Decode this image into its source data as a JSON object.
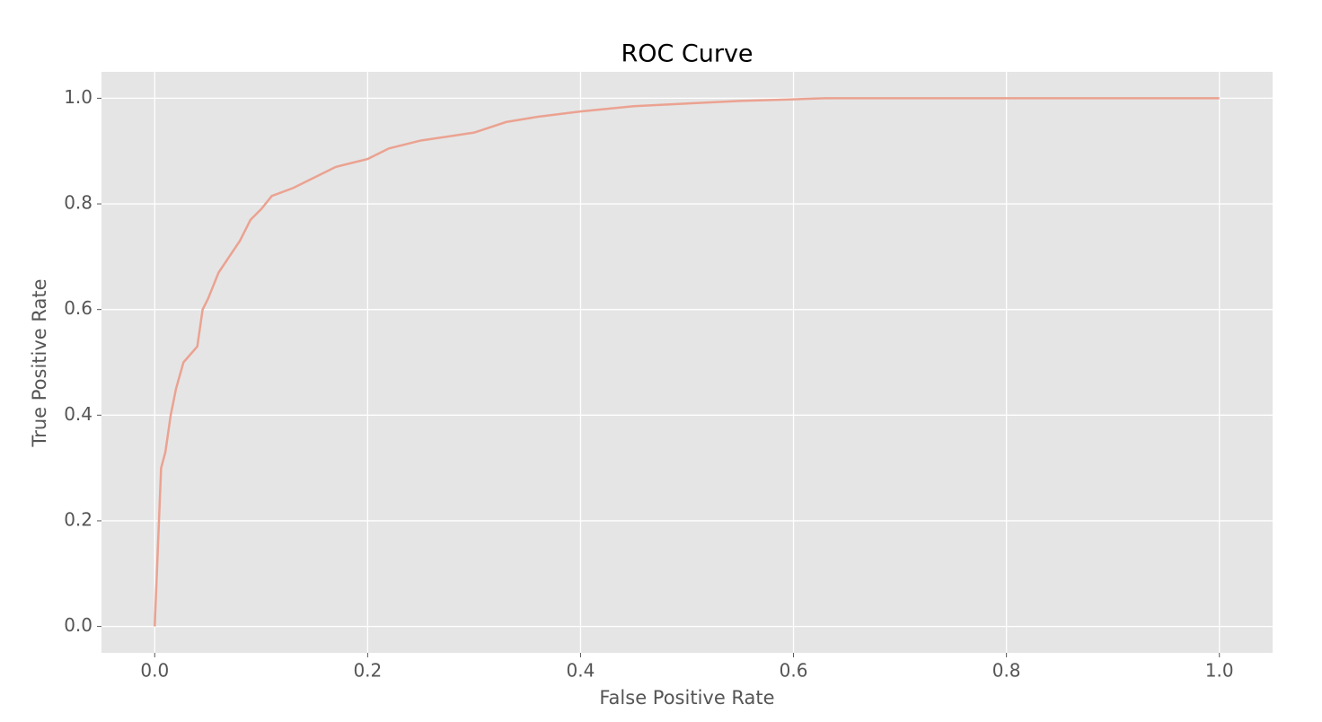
{
  "chart_data": {
    "type": "line",
    "title": "ROC Curve",
    "x_label": "False Positive Rate",
    "y_label": "True Positive Rate",
    "x": [
      0,
      0.002,
      0.004,
      0.006,
      0.01,
      0.015,
      0.02,
      0.027,
      0.04,
      0.045,
      0.05,
      0.06,
      0.07,
      0.08,
      0.09,
      0.1,
      0.11,
      0.13,
      0.15,
      0.17,
      0.2,
      0.22,
      0.25,
      0.3,
      0.33,
      0.36,
      0.4,
      0.45,
      0.5,
      0.55,
      0.6,
      0.63,
      1.0
    ],
    "series": [
      {
        "color": "#eba291",
        "values": [
          0,
          0.1,
          0.2,
          0.3,
          0.33,
          0.4,
          0.45,
          0.5,
          0.53,
          0.6,
          0.62,
          0.67,
          0.7,
          0.73,
          0.77,
          0.79,
          0.815,
          0.83,
          0.85,
          0.87,
          0.885,
          0.905,
          0.92,
          0.935,
          0.955,
          0.965,
          0.975,
          0.985,
          0.99,
          0.995,
          0.998,
          1.0,
          1.0
        ]
      }
    ],
    "xlim": [
      -0.05,
      1.05
    ],
    "ylim": [
      -0.05,
      1.05
    ],
    "xticks": [
      {
        "value": 0,
        "label": "0.0"
      },
      0.2,
      0.4,
      0.6,
      0.8,
      {
        "value": 1,
        "label": "1.0"
      }
    ],
    "yticks": [
      {
        "value": 0,
        "label": "0.0"
      },
      0.2,
      0.4,
      0.6,
      0.8,
      {
        "value": 1,
        "label": "1.0"
      }
    ],
    "grid": true
  }
}
